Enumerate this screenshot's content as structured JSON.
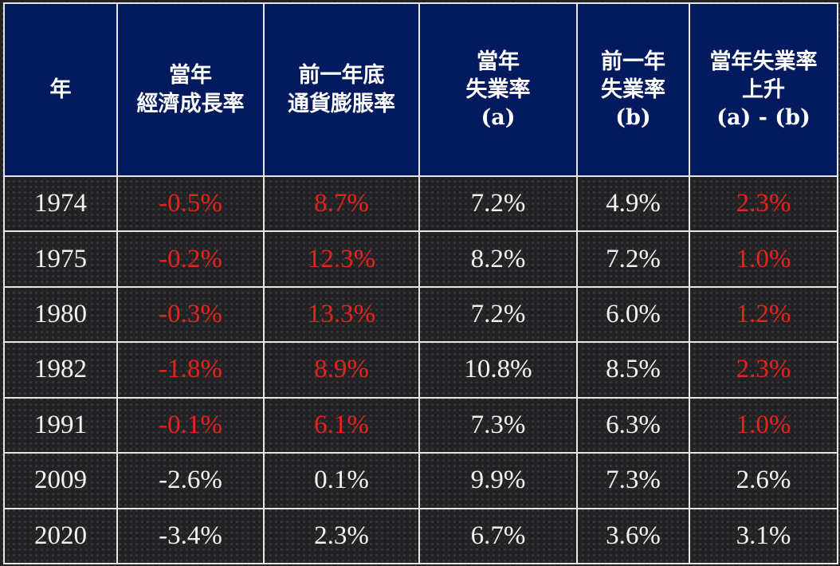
{
  "chart_data": {
    "type": "table",
    "columns": [
      {
        "key": "year",
        "label_lines": [
          "年"
        ]
      },
      {
        "key": "gdp_growth",
        "label_lines": [
          "當年",
          "經濟成長率"
        ]
      },
      {
        "key": "prior_inflation",
        "label_lines": [
          "前一年底",
          "通貨膨脹率"
        ]
      },
      {
        "key": "unemp_a",
        "label_lines": [
          "當年",
          "失業率",
          "(a)"
        ]
      },
      {
        "key": "unemp_b",
        "label_lines": [
          "前一年",
          "失業率",
          "(b)"
        ]
      },
      {
        "key": "unemp_rise",
        "label_lines": [
          "當年失業率",
          "上升",
          "(a) - (b)"
        ]
      }
    ],
    "rows": [
      {
        "year": "1974",
        "gdp_growth": "-0.5%",
        "prior_inflation": "8.7%",
        "unemp_a": "7.2%",
        "unemp_b": "4.9%",
        "unemp_rise": "2.3%",
        "highlight": true
      },
      {
        "year": "1975",
        "gdp_growth": "-0.2%",
        "prior_inflation": "12.3%",
        "unemp_a": "8.2%",
        "unemp_b": "7.2%",
        "unemp_rise": "1.0%",
        "highlight": true
      },
      {
        "year": "1980",
        "gdp_growth": "-0.3%",
        "prior_inflation": "13.3%",
        "unemp_a": "7.2%",
        "unemp_b": "6.0%",
        "unemp_rise": "1.2%",
        "highlight": true
      },
      {
        "year": "1982",
        "gdp_growth": "-1.8%",
        "prior_inflation": "8.9%",
        "unemp_a": "10.8%",
        "unemp_b": "8.5%",
        "unemp_rise": "2.3%",
        "highlight": true
      },
      {
        "year": "1991",
        "gdp_growth": "-0.1%",
        "prior_inflation": "6.1%",
        "unemp_a": "7.3%",
        "unemp_b": "6.3%",
        "unemp_rise": "1.0%",
        "highlight": true
      },
      {
        "year": "2009",
        "gdp_growth": "-2.6%",
        "prior_inflation": "0.1%",
        "unemp_a": "9.9%",
        "unemp_b": "7.3%",
        "unemp_rise": "2.6%",
        "highlight": false
      },
      {
        "year": "2020",
        "gdp_growth": "-3.4%",
        "prior_inflation": "2.3%",
        "unemp_a": "6.7%",
        "unemp_b": "3.6%",
        "unemp_rise": "3.1%",
        "highlight": false
      }
    ],
    "highlight_columns": [
      "gdp_growth",
      "prior_inflation",
      "unemp_rise"
    ]
  },
  "colors": {
    "header_bg": "#041a5e",
    "header_text": "#ffffff",
    "body_text": "#f2f2f2",
    "highlight_text": "#e8221a",
    "border": "#e6e6e6",
    "background": "#222224"
  }
}
